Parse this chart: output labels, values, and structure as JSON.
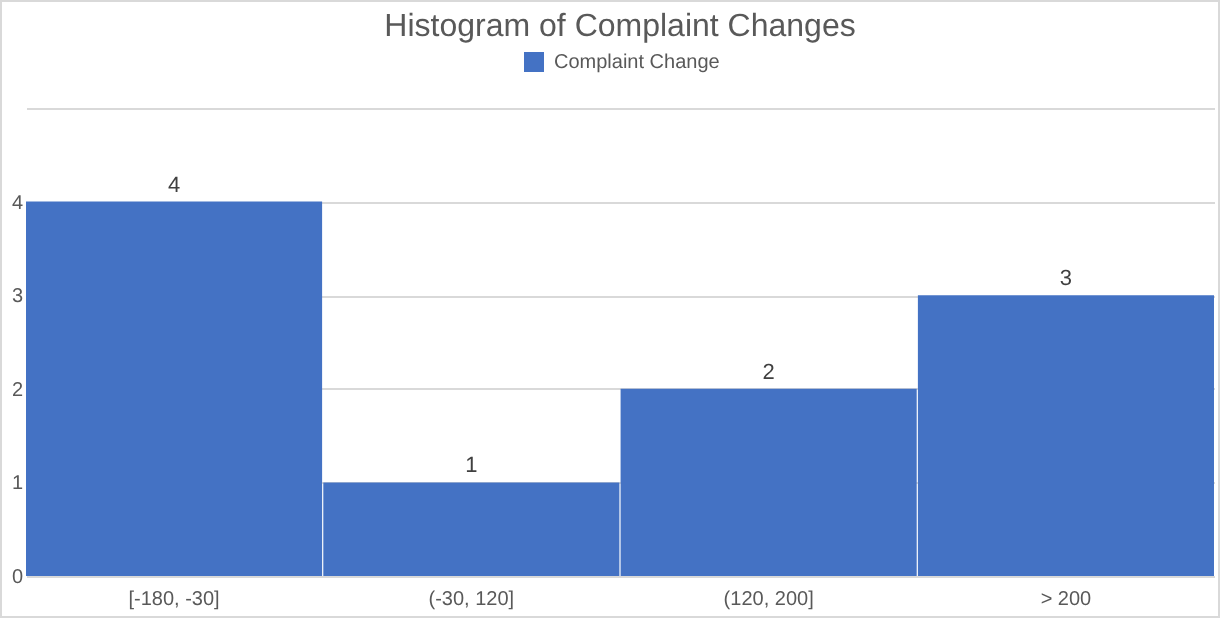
{
  "chart_data": {
    "type": "bar",
    "title": "Histogram of Complaint Changes",
    "categories": [
      "[-180, -30]",
      "(-30, 120]",
      "(120, 200]",
      "> 200"
    ],
    "series": [
      {
        "name": "Complaint Change",
        "color": "#4472c4",
        "values": [
          4,
          1,
          2,
          3
        ]
      }
    ],
    "ylim": [
      0,
      5
    ],
    "yticks": [
      0,
      1,
      2,
      3,
      4,
      {
        "value": 5,
        "label": null
      }
    ],
    "grid": "y",
    "legend": "top",
    "data_labels": true
  }
}
